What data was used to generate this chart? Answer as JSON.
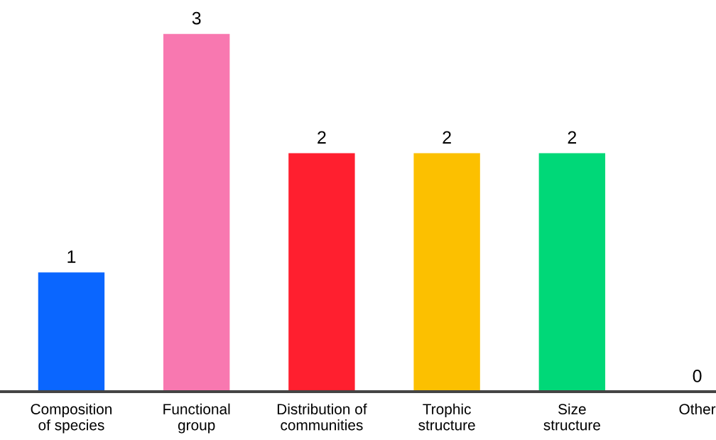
{
  "chart_data": {
    "type": "bar",
    "categories": [
      "Composition\nof species",
      "Functional\ngroup",
      "Distribution of\ncommunities",
      "Trophic\nstructure",
      "Size\nstructure",
      "Other"
    ],
    "values": [
      1,
      3,
      2,
      2,
      2,
      0
    ],
    "colors": [
      "#0a66ff",
      "#f878b0",
      "#ff1f2f",
      "#fcc000",
      "#00d878",
      "#00d878"
    ],
    "data_labels": true,
    "grid": false,
    "legend": false
  }
}
